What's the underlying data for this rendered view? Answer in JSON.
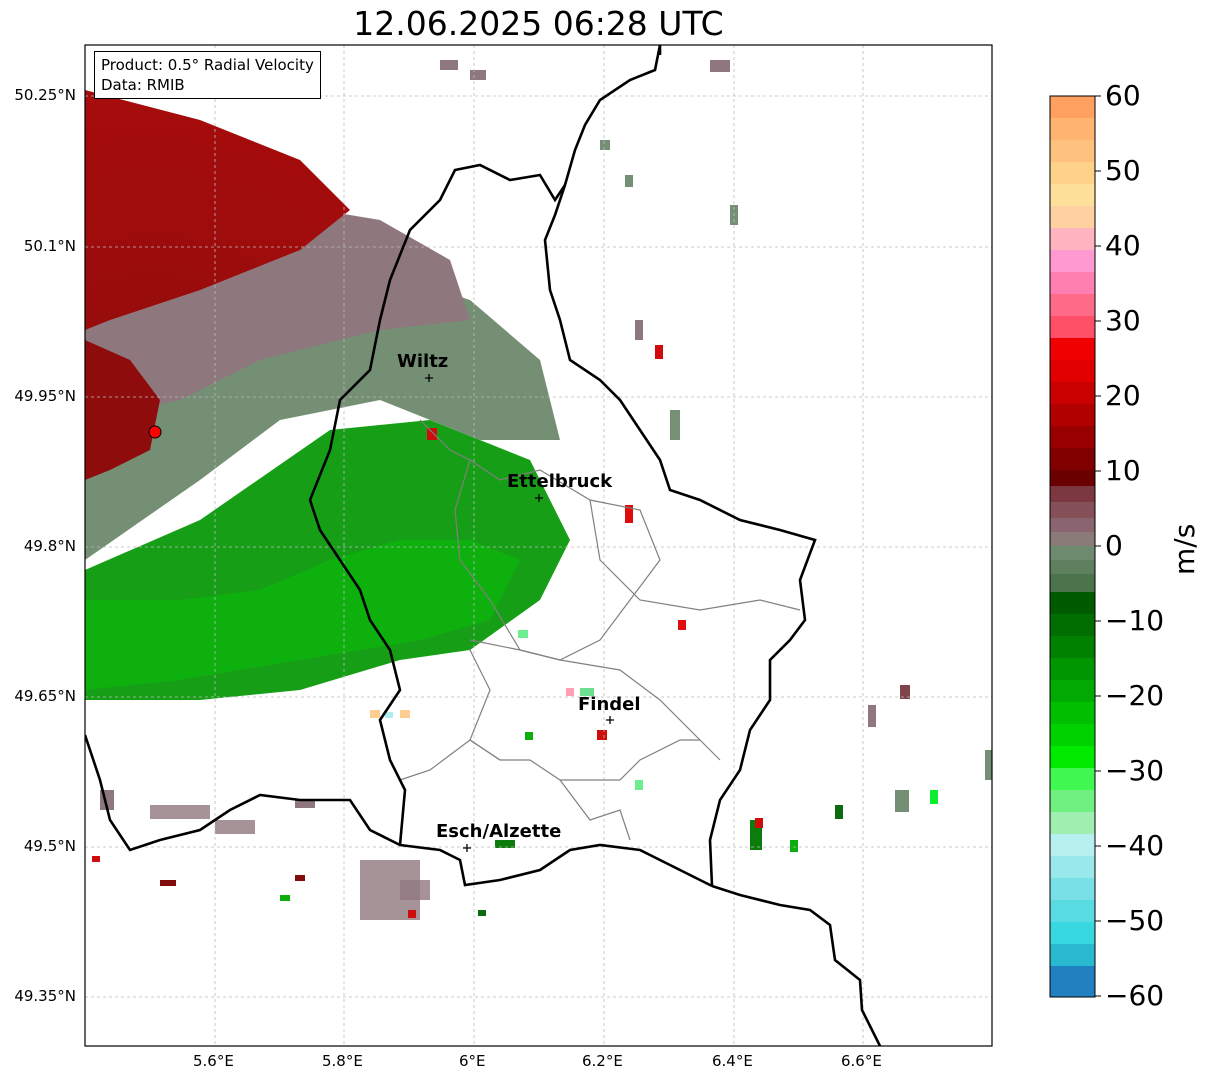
{
  "title": "12.06.2025 06:28 UTC",
  "infobox": {
    "product": "Product: 0.5° Radial Velocity",
    "data_source": "Data: RMIB"
  },
  "map": {
    "lat_labels": [
      "50.25°N",
      "50.1°N",
      "49.95°N",
      "49.8°N",
      "49.65°N",
      "49.5°N",
      "49.35°N"
    ],
    "lon_labels": [
      "5.6°E",
      "5.8°E",
      "6°E",
      "6.2°E",
      "6.4°E",
      "6.6°E"
    ],
    "cities": [
      "Wiltz",
      "Ettelbruck",
      "Findel",
      "Esch/Alzette"
    ],
    "radar_site": "radar-marker"
  },
  "colorbar": {
    "unit": "m/s",
    "tick_labels": [
      "60",
      "50",
      "40",
      "30",
      "20",
      "10",
      "0",
      "−10",
      "−20",
      "−30",
      "−40",
      "−50",
      "−60"
    ],
    "range": [
      -60,
      60
    ],
    "colors": {
      "orange": "#ff9b50",
      "light_orange": "#ffc882",
      "light_yellow": "#ffe89a",
      "pink": "#ff8ccf",
      "rose": "#ff5a78",
      "red": "#f00000",
      "dark_red": "#7a0000",
      "mauve": "#8a6a70",
      "grey_green": "#6a8a6a",
      "dark_green": "#006400",
      "green": "#00b400",
      "bright_green": "#00f000",
      "light_green": "#88ee99",
      "light_cyan": "#b0f0f0",
      "cyan": "#30d8e0",
      "blue": "#2080c0"
    }
  }
}
